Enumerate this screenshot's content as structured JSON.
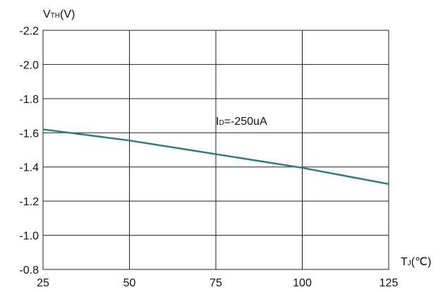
{
  "chart_data": {
    "type": "line",
    "title": "",
    "ylabel_main": "V",
    "ylabel_sub": "TH",
    "ylabel_unit": "(V)",
    "xlabel_main": "T",
    "xlabel_sub": "J",
    "xlabel_unit": "(℃)",
    "annotation_main": "I",
    "annotation_sub": "D",
    "annotation_value": "=-250uA",
    "xlim": [
      25,
      125
    ],
    "ylim": [
      -0.8,
      -2.2
    ],
    "x_ticks": [
      25,
      50,
      75,
      100,
      125
    ],
    "x_tick_labels": [
      "25",
      "50",
      "75",
      "100",
      "125"
    ],
    "y_ticks": [
      -2.2,
      -2.0,
      -1.8,
      -1.6,
      -1.4,
      -1.2,
      -1.0,
      -0.8
    ],
    "y_tick_labels": [
      "-2.2",
      "-2.0",
      "-1.8",
      "-1.6",
      "-1.4",
      "-1.2",
      "-1.0",
      "-0.8"
    ],
    "grid": true,
    "series": [
      {
        "color": "#2e7d7a",
        "x": [
          25,
          50,
          75,
          100,
          125
        ],
        "y": [
          -1.62,
          -1.555,
          -1.475,
          -1.395,
          -1.3
        ]
      }
    ]
  }
}
